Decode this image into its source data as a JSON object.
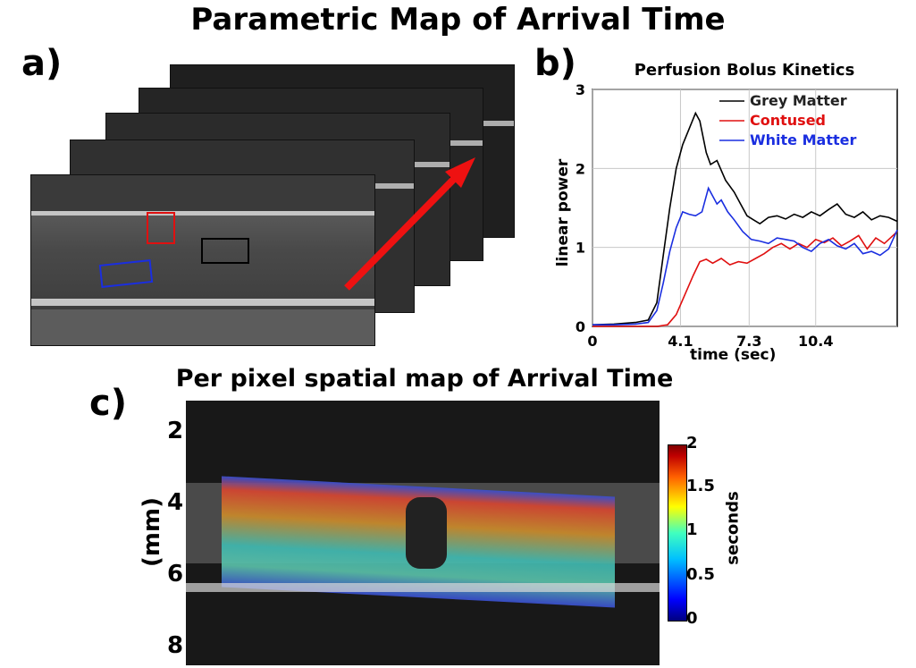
{
  "main_title": "Parametric Map of Arrival Time",
  "panels": {
    "a": "a)",
    "b": "b)",
    "c": "c)"
  },
  "panel_b": {
    "title": "Perfusion Bolus Kinetics",
    "xlabel": "time (sec)",
    "ylabel": "linear power"
  },
  "panel_c": {
    "title": "Per pixel spatial map of Arrival Time",
    "ylabel": "(mm)",
    "yticks": [
      "2",
      "4",
      "6",
      "8"
    ],
    "colorbar_label": "seconds",
    "colorbar_ticks": [
      "2",
      "1.5",
      "1",
      "0.5",
      "0"
    ]
  },
  "roi_colors": {
    "grey_matter": "#000000",
    "contused": "#e01010",
    "white_matter": "#1a2ee0"
  },
  "chart_data": {
    "type": "line",
    "title": "Perfusion Bolus Kinetics",
    "xlabel": "time (sec)",
    "ylabel": "linear power",
    "xlim": [
      0,
      14.2
    ],
    "ylim": [
      0,
      3
    ],
    "xticks": [
      "0",
      "4.1",
      "7.3",
      "10.4"
    ],
    "xtick_values": [
      0,
      4.1,
      7.3,
      10.4
    ],
    "yticks": [
      "0",
      "1",
      "2",
      "3"
    ],
    "ytick_values": [
      0,
      1,
      2,
      3
    ],
    "grid": true,
    "legend_position": "top-right",
    "series": [
      {
        "name": "Grey Matter",
        "color": "#000000",
        "x": [
          0,
          1,
          2,
          2.6,
          3,
          3.3,
          3.6,
          3.9,
          4.2,
          4.5,
          4.8,
          5.0,
          5.3,
          5.5,
          5.8,
          6.2,
          6.6,
          6.9,
          7.2,
          7.5,
          7.8,
          8.2,
          8.6,
          9.0,
          9.4,
          9.8,
          10.2,
          10.6,
          11.0,
          11.4,
          11.8,
          12.2,
          12.6,
          13.0,
          13.4,
          13.8,
          14.2
        ],
        "y": [
          0.02,
          0.03,
          0.05,
          0.08,
          0.3,
          0.9,
          1.5,
          2.0,
          2.3,
          2.5,
          2.7,
          2.6,
          2.2,
          2.05,
          2.1,
          1.85,
          1.7,
          1.55,
          1.4,
          1.35,
          1.3,
          1.38,
          1.4,
          1.36,
          1.42,
          1.38,
          1.45,
          1.4,
          1.48,
          1.55,
          1.42,
          1.38,
          1.45,
          1.35,
          1.4,
          1.38,
          1.33
        ]
      },
      {
        "name": "Contused",
        "color": "#e01010",
        "x": [
          0,
          1,
          2,
          3,
          3.5,
          3.9,
          4.3,
          4.7,
          5.0,
          5.3,
          5.6,
          6.0,
          6.4,
          6.8,
          7.2,
          7.6,
          8.0,
          8.4,
          8.8,
          9.2,
          9.6,
          10.0,
          10.4,
          10.8,
          11.2,
          11.6,
          12.0,
          12.4,
          12.8,
          13.2,
          13.6,
          14.0,
          14.2
        ],
        "y": [
          0.0,
          0.0,
          0.0,
          0.0,
          0.02,
          0.15,
          0.4,
          0.65,
          0.82,
          0.85,
          0.8,
          0.86,
          0.78,
          0.82,
          0.8,
          0.86,
          0.92,
          1.0,
          1.05,
          0.98,
          1.05,
          1.0,
          1.1,
          1.06,
          1.12,
          1.02,
          1.08,
          1.15,
          0.98,
          1.12,
          1.05,
          1.15,
          1.2
        ]
      },
      {
        "name": "White Matter",
        "color": "#1a2ee0",
        "x": [
          0,
          1,
          2,
          2.6,
          3,
          3.3,
          3.6,
          3.9,
          4.2,
          4.5,
          4.8,
          5.1,
          5.4,
          5.6,
          5.8,
          6.0,
          6.3,
          6.6,
          7.0,
          7.4,
          7.8,
          8.2,
          8.6,
          9.0,
          9.4,
          9.8,
          10.2,
          10.6,
          11.0,
          11.4,
          11.8,
          12.2,
          12.6,
          13.0,
          13.4,
          13.8,
          14.2
        ],
        "y": [
          0.02,
          0.02,
          0.03,
          0.05,
          0.2,
          0.55,
          0.95,
          1.25,
          1.45,
          1.42,
          1.4,
          1.45,
          1.75,
          1.65,
          1.55,
          1.6,
          1.45,
          1.35,
          1.2,
          1.1,
          1.08,
          1.05,
          1.12,
          1.1,
          1.08,
          1.0,
          0.95,
          1.05,
          1.1,
          1.02,
          0.98,
          1.05,
          0.92,
          0.95,
          0.9,
          0.98,
          1.22
        ]
      }
    ]
  }
}
